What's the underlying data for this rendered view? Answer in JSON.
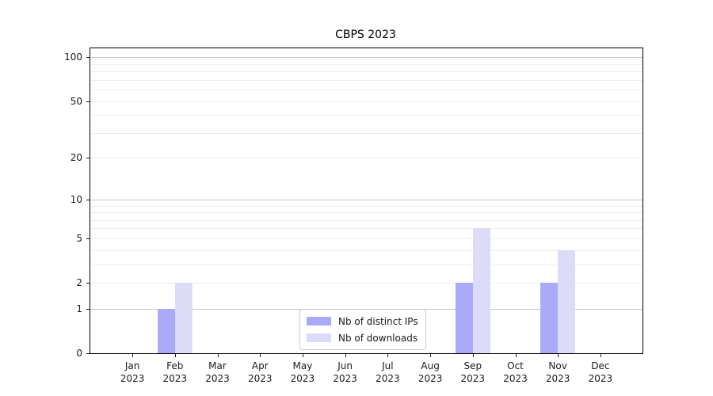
{
  "chart_data": {
    "type": "bar",
    "title": "CBPS 2023",
    "categories": [
      [
        "Jan",
        "2023"
      ],
      [
        "Feb",
        "2023"
      ],
      [
        "Mar",
        "2023"
      ],
      [
        "Apr",
        "2023"
      ],
      [
        "May",
        "2023"
      ],
      [
        "Jun",
        "2023"
      ],
      [
        "Jul",
        "2023"
      ],
      [
        "Aug",
        "2023"
      ],
      [
        "Sep",
        "2023"
      ],
      [
        "Oct",
        "2023"
      ],
      [
        "Nov",
        "2023"
      ],
      [
        "Dec",
        "2023"
      ]
    ],
    "series": [
      {
        "name": "Nb of distinct IPs",
        "color": "#aaaaf8",
        "values": [
          0,
          1,
          0,
          0,
          0,
          0,
          0,
          0,
          2,
          0,
          2,
          0
        ]
      },
      {
        "name": "Nb of downloads",
        "color": "#dcdcf8",
        "values": [
          0,
          2,
          0,
          0,
          0,
          0,
          0,
          0,
          6,
          0,
          4,
          0
        ]
      }
    ],
    "yscale": "log1p",
    "yticks": [
      0,
      1,
      2,
      5,
      10,
      20,
      50,
      100
    ],
    "major_gridlines": [
      1,
      10,
      100
    ],
    "minor_gridlines": [
      2,
      3,
      4,
      5,
      6,
      7,
      8,
      9,
      20,
      30,
      40,
      50,
      60,
      70,
      80,
      90
    ],
    "ylim": [
      0,
      115
    ],
    "xlabel": "",
    "ylabel": "",
    "grid": "horizontal",
    "legend_position": "lower center inside"
  }
}
